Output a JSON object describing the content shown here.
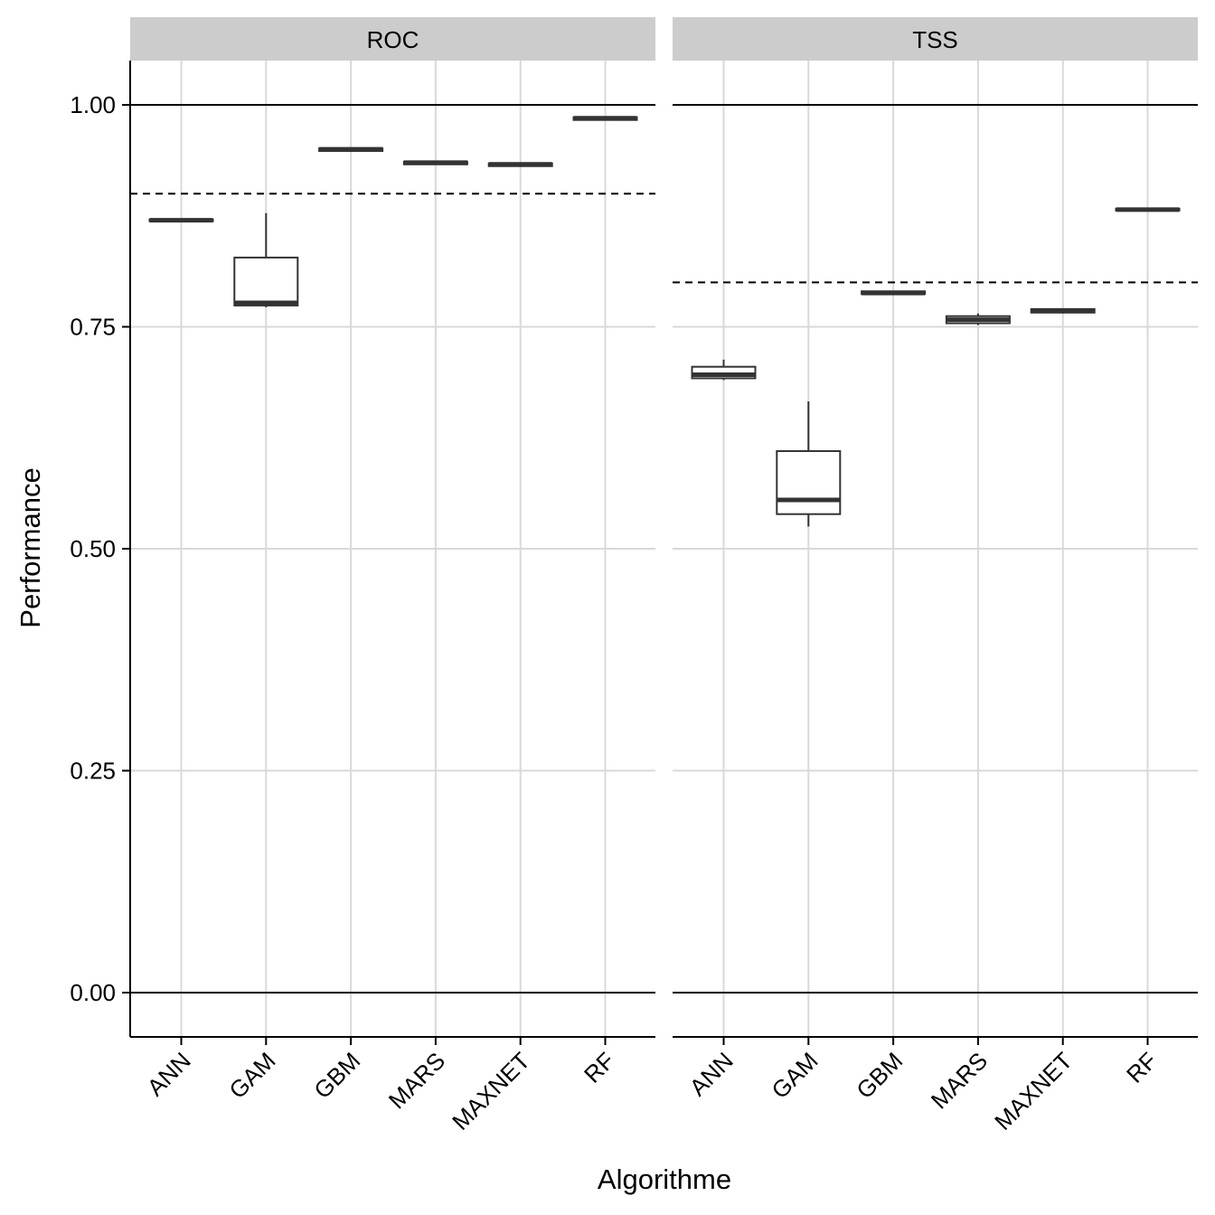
{
  "chart_data": {
    "type": "boxplot",
    "title": "",
    "xlabel": "Algorithme",
    "ylabel": "Performance",
    "ylim": [
      -0.05,
      1.05
    ],
    "yticks": [
      0.0,
      0.25,
      0.5,
      0.75,
      1.0
    ],
    "ytick_labels": [
      "0.00",
      "0.25",
      "0.50",
      "0.75",
      "1.00"
    ],
    "categories": [
      "ANN",
      "GAM",
      "GBM",
      "MARS",
      "MAXNET",
      "RF"
    ],
    "grid": true,
    "panels": [
      {
        "name": "ROC",
        "reference_lines": [
          0.0,
          1.0
        ],
        "threshold": 0.9,
        "boxes": [
          {
            "category": "ANN",
            "min": 0.869,
            "q1": 0.869,
            "median": 0.87,
            "q3": 0.871,
            "max": 0.871
          },
          {
            "category": "GAM",
            "min": 0.772,
            "q1": 0.774,
            "median": 0.777,
            "q3": 0.828,
            "max": 0.878
          },
          {
            "category": "GBM",
            "min": 0.948,
            "q1": 0.948,
            "median": 0.95,
            "q3": 0.951,
            "max": 0.951
          },
          {
            "category": "MARS",
            "min": 0.933,
            "q1": 0.933,
            "median": 0.935,
            "q3": 0.936,
            "max": 0.936
          },
          {
            "category": "MAXNET",
            "min": 0.931,
            "q1": 0.931,
            "median": 0.933,
            "q3": 0.934,
            "max": 0.934
          },
          {
            "category": "RF",
            "min": 0.983,
            "q1": 0.983,
            "median": 0.985,
            "q3": 0.986,
            "max": 0.986
          }
        ]
      },
      {
        "name": "TSS",
        "reference_lines": [
          0.0,
          1.0
        ],
        "threshold": 0.8,
        "boxes": [
          {
            "category": "ANN",
            "min": 0.69,
            "q1": 0.692,
            "median": 0.696,
            "q3": 0.705,
            "max": 0.713
          },
          {
            "category": "GAM",
            "min": 0.525,
            "q1": 0.539,
            "median": 0.555,
            "q3": 0.61,
            "max": 0.666
          },
          {
            "category": "GBM",
            "min": 0.787,
            "q1": 0.787,
            "median": 0.788,
            "q3": 0.79,
            "max": 0.79
          },
          {
            "category": "MARS",
            "min": 0.752,
            "q1": 0.754,
            "median": 0.758,
            "q3": 0.762,
            "max": 0.765
          },
          {
            "category": "MAXNET",
            "min": 0.765,
            "q1": 0.766,
            "median": 0.768,
            "q3": 0.77,
            "max": 0.77
          },
          {
            "category": "RF",
            "min": 0.881,
            "q1": 0.881,
            "median": 0.882,
            "q3": 0.883,
            "max": 0.883
          }
        ]
      }
    ]
  }
}
